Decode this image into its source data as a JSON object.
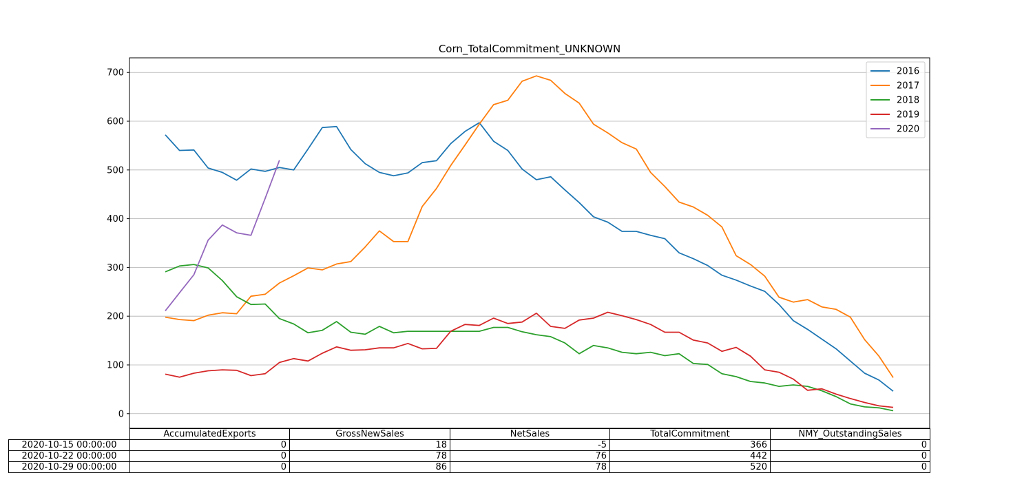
{
  "chart_data": {
    "type": "line",
    "title": "Corn_TotalCommitment_UNKNOWN",
    "xlabel": "",
    "ylabel": "",
    "ylim": [
      -30,
      730
    ],
    "yticks": [
      0,
      100,
      200,
      300,
      400,
      500,
      600,
      700
    ],
    "grid": "horizontal",
    "legend_position": "top-right",
    "colors": {
      "2016": "#1f77b4",
      "2017": "#ff7f0e",
      "2018": "#2ca02c",
      "2019": "#d62728",
      "2020": "#9467bd"
    },
    "series": [
      {
        "name": "2016",
        "values": [
          572,
          540,
          541,
          504,
          495,
          479,
          502,
          497,
          505,
          500,
          543,
          587,
          589,
          542,
          513,
          495,
          488,
          494,
          515,
          519,
          554,
          579,
          597,
          559,
          540,
          502,
          480,
          486,
          459,
          433,
          404,
          393,
          374,
          374,
          366,
          359,
          330,
          318,
          304,
          284,
          274,
          262,
          251,
          224,
          191,
          173,
          153,
          133,
          108,
          83,
          69,
          46
        ]
      },
      {
        "name": "2017",
        "values": [
          198,
          193,
          191,
          202,
          207,
          205,
          241,
          245,
          268,
          283,
          299,
          295,
          307,
          312,
          342,
          375,
          353,
          353,
          425,
          462,
          509,
          551,
          594,
          634,
          643,
          682,
          693,
          684,
          657,
          637,
          594,
          576,
          556,
          543,
          495,
          466,
          434,
          424,
          407,
          383,
          324,
          306,
          282,
          239,
          229,
          234,
          219,
          214,
          198,
          152,
          118,
          74
        ]
      },
      {
        "name": "2018",
        "values": [
          291,
          303,
          306,
          299,
          273,
          240,
          224,
          225,
          195,
          184,
          166,
          171,
          189,
          167,
          163,
          179,
          166,
          169,
          169,
          169,
          169,
          169,
          169,
          177,
          177,
          168,
          162,
          158,
          145,
          123,
          140,
          135,
          126,
          123,
          126,
          119,
          123,
          103,
          101,
          82,
          76,
          66,
          63,
          56,
          59,
          56,
          47,
          35,
          20,
          14,
          12,
          6
        ]
      },
      {
        "name": "2019",
        "values": [
          81,
          75,
          83,
          88,
          90,
          89,
          78,
          82,
          105,
          113,
          108,
          124,
          137,
          130,
          131,
          135,
          135,
          144,
          133,
          134,
          169,
          183,
          181,
          196,
          185,
          188,
          206,
          179,
          175,
          192,
          196,
          208,
          201,
          193,
          183,
          167,
          167,
          151,
          145,
          128,
          136,
          118,
          90,
          85,
          71,
          48,
          51,
          40,
          31,
          23,
          16,
          13
        ]
      },
      {
        "name": "2020",
        "values": [
          211,
          248,
          285,
          356,
          387,
          371,
          366,
          442,
          520
        ]
      }
    ],
    "table": {
      "columns": [
        "AccumulatedExports",
        "GrossNewSales",
        "NetSales",
        "TotalCommitment",
        "NMY_OutstandingSales"
      ],
      "rows": [
        {
          "label": "2020-10-15 00:00:00",
          "values": [
            "0",
            "18",
            "-5",
            "366",
            "0"
          ]
        },
        {
          "label": "2020-10-22 00:00:00",
          "values": [
            "0",
            "78",
            "76",
            "442",
            "0"
          ]
        },
        {
          "label": "2020-10-29 00:00:00",
          "values": [
            "0",
            "86",
            "78",
            "520",
            "0"
          ]
        }
      ]
    }
  }
}
